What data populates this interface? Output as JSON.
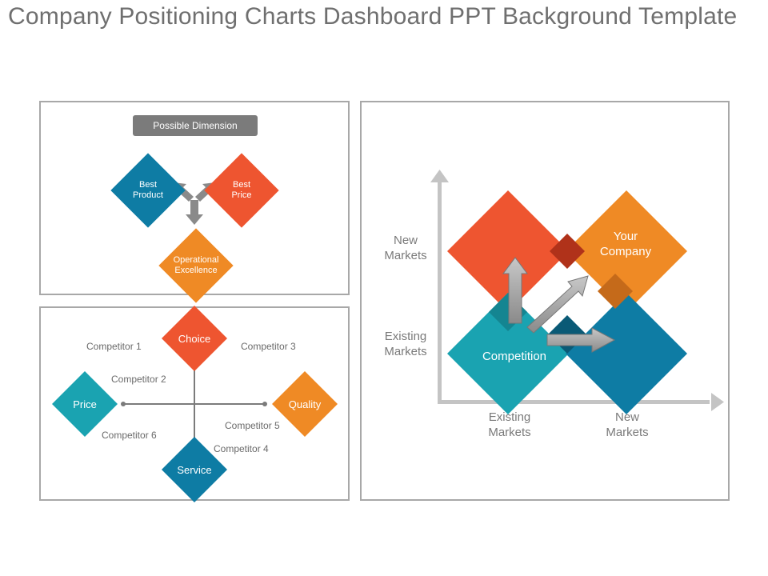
{
  "title": "Company Positioning Charts Dashboard PPT Background Template",
  "colors": {
    "teal": "#1aa3b1",
    "blue": "#0e7ca4",
    "red": "#ee5530",
    "orange": "#ef8a25",
    "gray": "#7b7b7b",
    "arrow_gray": "#8e8e8e"
  },
  "possible_dimension": {
    "label": "Possible Dimension",
    "best_product": "Best\nProduct",
    "best_price": "Best\nPrice",
    "operational_excellence": "Operational\nExcellence"
  },
  "competitor_map": {
    "choice": "Choice",
    "price": "Price",
    "quality": "Quality",
    "service": "Service",
    "competitors": {
      "c1": "Competitor  1",
      "c2": "Competitor  2",
      "c3": "Competitor  3",
      "c4": "Competitor  4",
      "c5": "Competitor  5",
      "c6": "Competitor  6"
    }
  },
  "positioning": {
    "y_new": "New\nMarkets",
    "y_existing": "Existing\nMarkets",
    "x_existing": "Existing\nMarkets",
    "x_new": "New\nMarkets",
    "your_company": "Your\nCompany",
    "competition": "Competition"
  }
}
